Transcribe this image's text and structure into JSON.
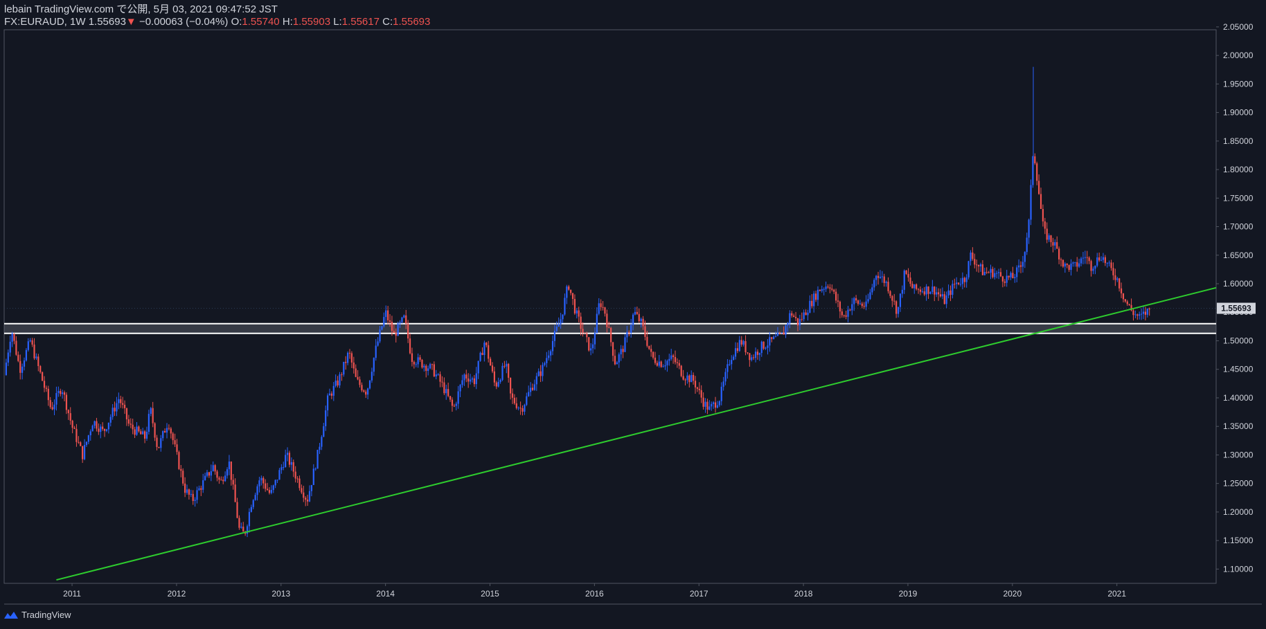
{
  "header": {
    "publisher": "lebain TradingView.com で公開, 5月 03, 2021 09:47:52 JST",
    "symbol": "FX:EURAUD, 1W",
    "last": "1.55693",
    "arrow": "▼",
    "change": "−0.00063 (−0.04%)",
    "open_label": "O:",
    "open": "1.55740",
    "high_label": "H:",
    "high": "1.55903",
    "low_label": "L:",
    "low": "1.55617",
    "close_label": "C:",
    "close": "1.55693"
  },
  "brand": {
    "name": "TradingView",
    "icon": "tradingview-logo-icon"
  },
  "colors": {
    "background": "#131722",
    "up": "#2962ff",
    "down": "#ef5350",
    "trendline": "#2ecc2e",
    "horizontal": "#ffffff",
    "price_label_bg": "#d1d4dc",
    "border": "#505561",
    "text": "#d1d4dc"
  },
  "chart_data": {
    "type": "candlestick",
    "title": "FX:EURAUD, 1W",
    "xlabel": "",
    "ylabel": "",
    "ylim": [
      1.075,
      2.045
    ],
    "y_ticks": [
      "1.10000",
      "1.15000",
      "1.20000",
      "1.25000",
      "1.30000",
      "1.35000",
      "1.40000",
      "1.45000",
      "1.50000",
      "1.55000",
      "1.60000",
      "1.65000",
      "1.70000",
      "1.75000",
      "1.80000",
      "1.85000",
      "1.90000",
      "1.95000",
      "2.00000",
      "2.05000"
    ],
    "x_range": [
      2010.35,
      2021.95
    ],
    "x_ticks": [
      {
        "label": "2011",
        "x": 2011
      },
      {
        "label": "2012",
        "x": 2012
      },
      {
        "label": "2013",
        "x": 2013
      },
      {
        "label": "2014",
        "x": 2014
      },
      {
        "label": "2015",
        "x": 2015
      },
      {
        "label": "2016",
        "x": 2016
      },
      {
        "label": "2017",
        "x": 2017
      },
      {
        "label": "2018",
        "x": 2018
      },
      {
        "label": "2019",
        "x": 2019
      },
      {
        "label": "2020",
        "x": 2020
      },
      {
        "label": "2021",
        "x": 2021
      }
    ],
    "current_price_label": "1.55693",
    "current_price": 1.55693,
    "horizontal_lines": [
      1.53,
      1.513
    ],
    "trendline": {
      "x1": 2010.85,
      "y1": 1.081,
      "x2": 2021.95,
      "y2": 1.593
    },
    "price_path": [
      [
        2010.35,
        1.44
      ],
      [
        2010.42,
        1.52
      ],
      [
        2010.5,
        1.45
      ],
      [
        2010.6,
        1.5
      ],
      [
        2010.7,
        1.44
      ],
      [
        2010.8,
        1.38
      ],
      [
        2010.9,
        1.42
      ],
      [
        2011.0,
        1.35
      ],
      [
        2011.1,
        1.3
      ],
      [
        2011.2,
        1.36
      ],
      [
        2011.3,
        1.34
      ],
      [
        2011.45,
        1.4
      ],
      [
        2011.55,
        1.35
      ],
      [
        2011.7,
        1.33
      ],
      [
        2011.75,
        1.38
      ],
      [
        2011.82,
        1.31
      ],
      [
        2011.92,
        1.36
      ],
      [
        2012.0,
        1.3
      ],
      [
        2012.08,
        1.24
      ],
      [
        2012.15,
        1.22
      ],
      [
        2012.25,
        1.25
      ],
      [
        2012.35,
        1.28
      ],
      [
        2012.42,
        1.25
      ],
      [
        2012.5,
        1.29
      ],
      [
        2012.6,
        1.17
      ],
      [
        2012.65,
        1.16
      ],
      [
        2012.72,
        1.22
      ],
      [
        2012.8,
        1.26
      ],
      [
        2012.9,
        1.23
      ],
      [
        2013.05,
        1.3
      ],
      [
        2013.15,
        1.26
      ],
      [
        2013.25,
        1.22
      ],
      [
        2013.35,
        1.3
      ],
      [
        2013.45,
        1.4
      ],
      [
        2013.55,
        1.43
      ],
      [
        2013.65,
        1.48
      ],
      [
        2013.72,
        1.43
      ],
      [
        2013.82,
        1.41
      ],
      [
        2013.9,
        1.48
      ],
      [
        2014.0,
        1.55
      ],
      [
        2014.08,
        1.51
      ],
      [
        2014.18,
        1.54
      ],
      [
        2014.25,
        1.47
      ],
      [
        2014.35,
        1.46
      ],
      [
        2014.45,
        1.45
      ],
      [
        2014.55,
        1.42
      ],
      [
        2014.65,
        1.38
      ],
      [
        2014.75,
        1.44
      ],
      [
        2014.85,
        1.43
      ],
      [
        2014.95,
        1.5
      ],
      [
        2015.05,
        1.42
      ],
      [
        2015.15,
        1.46
      ],
      [
        2015.2,
        1.4
      ],
      [
        2015.3,
        1.38
      ],
      [
        2015.4,
        1.42
      ],
      [
        2015.5,
        1.45
      ],
      [
        2015.6,
        1.5
      ],
      [
        2015.68,
        1.54
      ],
      [
        2015.75,
        1.6
      ],
      [
        2015.82,
        1.55
      ],
      [
        2015.9,
        1.51
      ],
      [
        2015.97,
        1.48
      ],
      [
        2016.05,
        1.57
      ],
      [
        2016.1,
        1.55
      ],
      [
        2016.2,
        1.46
      ],
      [
        2016.28,
        1.49
      ],
      [
        2016.38,
        1.55
      ],
      [
        2016.45,
        1.53
      ],
      [
        2016.55,
        1.47
      ],
      [
        2016.65,
        1.46
      ],
      [
        2016.75,
        1.47
      ],
      [
        2016.85,
        1.44
      ],
      [
        2016.95,
        1.43
      ],
      [
        2017.05,
        1.39
      ],
      [
        2017.1,
        1.38
      ],
      [
        2017.2,
        1.4
      ],
      [
        2017.3,
        1.47
      ],
      [
        2017.4,
        1.5
      ],
      [
        2017.5,
        1.47
      ],
      [
        2017.6,
        1.49
      ],
      [
        2017.7,
        1.5
      ],
      [
        2017.8,
        1.51
      ],
      [
        2017.88,
        1.55
      ],
      [
        2017.95,
        1.53
      ],
      [
        2018.05,
        1.56
      ],
      [
        2018.15,
        1.59
      ],
      [
        2018.25,
        1.6
      ],
      [
        2018.38,
        1.54
      ],
      [
        2018.48,
        1.57
      ],
      [
        2018.6,
        1.56
      ],
      [
        2018.7,
        1.62
      ],
      [
        2018.8,
        1.6
      ],
      [
        2018.9,
        1.55
      ],
      [
        2018.97,
        1.62
      ],
      [
        2019.05,
        1.59
      ],
      [
        2019.15,
        1.59
      ],
      [
        2019.25,
        1.59
      ],
      [
        2019.35,
        1.57
      ],
      [
        2019.45,
        1.6
      ],
      [
        2019.55,
        1.61
      ],
      [
        2019.6,
        1.65
      ],
      [
        2019.72,
        1.62
      ],
      [
        2019.82,
        1.62
      ],
      [
        2019.92,
        1.61
      ],
      [
        2020.0,
        1.61
      ],
      [
        2020.08,
        1.63
      ],
      [
        2020.12,
        1.66
      ],
      [
        2020.16,
        1.71
      ],
      [
        2020.2,
        1.84
      ],
      [
        2020.24,
        1.78
      ],
      [
        2020.3,
        1.69
      ],
      [
        2020.4,
        1.67
      ],
      [
        2020.5,
        1.63
      ],
      [
        2020.6,
        1.63
      ],
      [
        2020.7,
        1.65
      ],
      [
        2020.75,
        1.63
      ],
      [
        2020.85,
        1.65
      ],
      [
        2020.92,
        1.63
      ],
      [
        2021.0,
        1.61
      ],
      [
        2021.08,
        1.57
      ],
      [
        2021.15,
        1.55
      ],
      [
        2021.22,
        1.54
      ],
      [
        2021.28,
        1.55
      ],
      [
        2021.33,
        1.557
      ]
    ],
    "spike": {
      "x": 2020.2,
      "high": 1.98
    }
  }
}
